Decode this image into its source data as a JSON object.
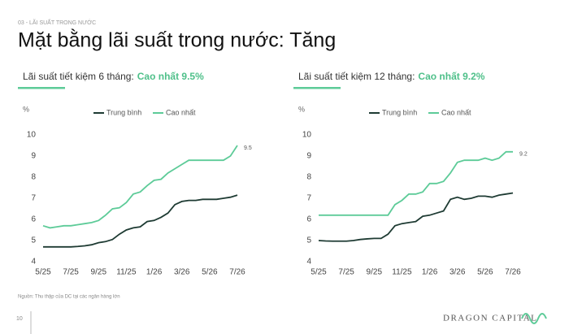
{
  "header": {
    "section": "03 - LÃI SUẤT TRONG NƯỚC",
    "title": "Mặt bằng lãi suất trong nước: Tăng"
  },
  "chart_data": [
    {
      "type": "line",
      "title": "Lãi suất tiết kiệm 6 tháng:",
      "highlight": "Cao nhất 9.5%",
      "y_label": "%",
      "categories": [
        "5/25",
        null,
        null,
        null,
        "7/25",
        null,
        null,
        null,
        "9/25",
        null,
        null,
        null,
        "11/25",
        null,
        null,
        null,
        "1/26",
        null,
        null,
        null,
        "3/26",
        null,
        null,
        null,
        "5/26",
        null,
        null,
        null,
        "7/26"
      ],
      "series": [
        {
          "name": "Trung bình",
          "color": "#1e3b33",
          "values": [
            4.7,
            4.7,
            4.7,
            4.7,
            4.7,
            4.72,
            4.75,
            4.8,
            4.9,
            4.95,
            5.05,
            5.3,
            5.5,
            5.6,
            5.65,
            5.9,
            5.95,
            6.1,
            6.3,
            6.7,
            6.85,
            6.9,
            6.9,
            6.95,
            6.95,
            6.95,
            7.0,
            7.05,
            7.15
          ]
        },
        {
          "name": "Cao nhất",
          "color": "#5dcb98",
          "values": [
            5.7,
            5.6,
            5.65,
            5.7,
            5.7,
            5.75,
            5.8,
            5.85,
            5.95,
            6.2,
            6.5,
            6.55,
            6.8,
            7.2,
            7.3,
            7.6,
            7.85,
            7.9,
            8.2,
            8.4,
            8.6,
            8.8,
            8.8,
            8.8,
            8.8,
            8.8,
            8.8,
            9.0,
            9.5
          ]
        }
      ],
      "ylim": [
        4,
        10
      ],
      "yticks": [
        4,
        5,
        6,
        7,
        8,
        9,
        10
      ]
    },
    {
      "type": "line",
      "title": "Lãi suất tiết kiệm 12 tháng:",
      "highlight": "Cao nhất 9.2%",
      "y_label": "%",
      "categories": [
        "5/25",
        null,
        null,
        null,
        "7/25",
        null,
        null,
        null,
        "9/25",
        null,
        null,
        null,
        "11/25",
        null,
        null,
        null,
        "1/26",
        null,
        null,
        null,
        "3/26",
        null,
        null,
        null,
        "5/26",
        null,
        null,
        null,
        "7/26"
      ],
      "series": [
        {
          "name": "Trung bình",
          "color": "#1e3b33",
          "values": [
            5.0,
            4.98,
            4.97,
            4.97,
            4.97,
            5.0,
            5.05,
            5.08,
            5.1,
            5.1,
            5.3,
            5.7,
            5.8,
            5.85,
            5.9,
            6.15,
            6.2,
            6.3,
            6.4,
            6.95,
            7.05,
            6.95,
            7.0,
            7.1,
            7.1,
            7.05,
            7.15,
            7.2,
            7.25
          ]
        },
        {
          "name": "Cao nhất",
          "color": "#5dcb98",
          "values": [
            6.2,
            6.2,
            6.2,
            6.2,
            6.2,
            6.2,
            6.2,
            6.2,
            6.2,
            6.2,
            6.2,
            6.7,
            6.9,
            7.2,
            7.2,
            7.3,
            7.7,
            7.7,
            7.8,
            8.2,
            8.7,
            8.8,
            8.8,
            8.8,
            8.9,
            8.8,
            8.9,
            9.2,
            9.2
          ]
        }
      ],
      "ylim": [
        4,
        10
      ],
      "yticks": [
        4,
        5,
        6,
        7,
        8,
        9,
        10
      ]
    }
  ],
  "footer": {
    "source": "Nguồn: Thu thập của DC tại các ngân hàng lớn",
    "page": "10",
    "brand": "DRAGON CAPITAL"
  }
}
